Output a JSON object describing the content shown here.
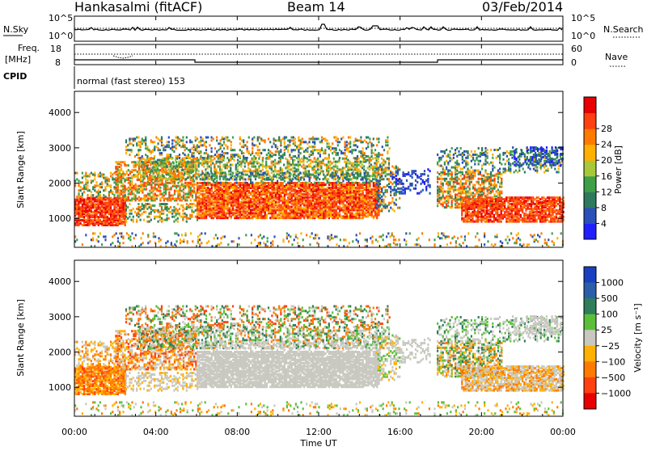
{
  "header": {
    "station": "Hankasalmi (fitACF)",
    "beam": "Beam 14",
    "date": "03/Feb/2014"
  },
  "noise_panel": {
    "left_label": "N.Sky",
    "right_label": "N.Search",
    "left_ticks": [
      "10^5",
      "10^0"
    ],
    "right_ticks": [
      "10^5",
      "10^0"
    ]
  },
  "freq_panel": {
    "left_label_1": "Freq.",
    "left_label_2": "[MHz]",
    "right_label": "Nave",
    "left_ticks": [
      "18",
      "8"
    ],
    "right_ticks": [
      "60",
      "0"
    ],
    "cpid_label": "CPID",
    "cpid_text": "normal (fast stereo) 153"
  },
  "chart_data": [
    {
      "type": "heatmap",
      "title": "Power",
      "ylabel": "Slant Range [km]",
      "xlabel": "",
      "x_ticks": [
        "00:00",
        "04:00",
        "08:00",
        "12:00",
        "16:00",
        "20:00",
        "00:00"
      ],
      "xlim_hours": [
        0,
        24
      ],
      "y_ticks": [
        1000,
        2000,
        3000,
        4000
      ],
      "ylim": [
        180,
        4600
      ],
      "colorbar": {
        "label": "Power [dB]",
        "ticks": [
          4,
          8,
          12,
          16,
          20,
          24,
          28
        ],
        "range": [
          0,
          32
        ],
        "colors": [
          "#1f1fff",
          "#2a4fb8",
          "#2e7a5e",
          "#3da048",
          "#a8c83a",
          "#ffb000",
          "#ff7a00",
          "#ff4010",
          "#e80000"
        ]
      }
    },
    {
      "type": "heatmap",
      "title": "Velocity",
      "ylabel": "Slant Range [km]",
      "xlabel": "Time UT",
      "x_ticks": [
        "00:00",
        "04:00",
        "08:00",
        "12:00",
        "16:00",
        "20:00",
        "00:00"
      ],
      "xlim_hours": [
        0,
        24
      ],
      "y_ticks": [
        1000,
        2000,
        3000,
        4000
      ],
      "ylim": [
        180,
        4600
      ],
      "colorbar": {
        "label": "Velocity [m s⁻¹]",
        "ticks": [
          "1000",
          "500",
          "100",
          "25",
          "−25",
          "−100",
          "−500",
          "−1000"
        ],
        "colors": [
          "#1a3fbf",
          "#2a5fa8",
          "#2f7d5a",
          "#5bbf3a",
          "#c8c8c0",
          "#ffb000",
          "#ff7a00",
          "#ff4010",
          "#e80000"
        ]
      }
    }
  ]
}
